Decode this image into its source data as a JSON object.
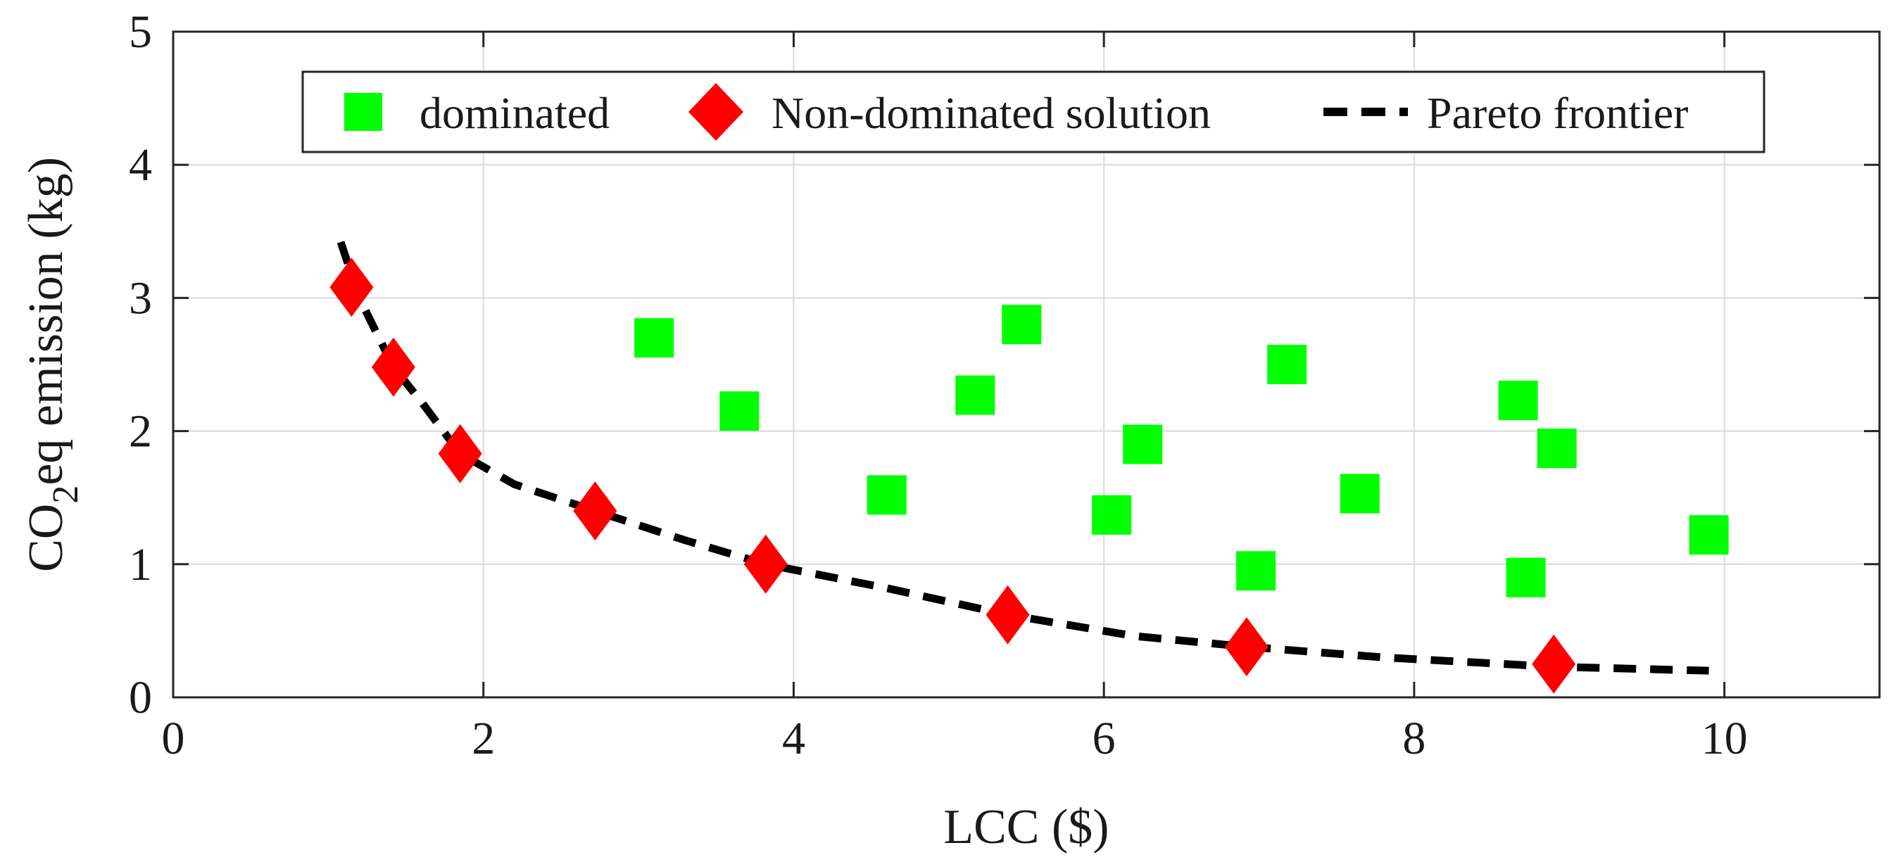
{
  "chart_data": {
    "type": "scatter",
    "xlabel": "LCC ($)",
    "ylabel": {
      "main": "CO",
      "subscript": "2",
      "rest": "eq emission (kg)"
    },
    "xlim": [
      0,
      11
    ],
    "ylim": [
      0,
      5
    ],
    "x_ticks": [
      0,
      2,
      4,
      6,
      8,
      10
    ],
    "y_ticks": [
      0,
      1,
      2,
      3,
      4,
      5
    ],
    "grid": true,
    "legend_position": "top-center",
    "series": [
      {
        "name": "dominated",
        "marker": "square",
        "color": "#00ff00",
        "points": [
          [
            3.1,
            2.7
          ],
          [
            3.65,
            2.15
          ],
          [
            4.6,
            1.52
          ],
          [
            5.17,
            2.27
          ],
          [
            5.47,
            2.8
          ],
          [
            6.05,
            1.37
          ],
          [
            6.25,
            1.9
          ],
          [
            6.98,
            0.95
          ],
          [
            7.18,
            2.5
          ],
          [
            7.65,
            1.53
          ],
          [
            8.67,
            2.23
          ],
          [
            8.72,
            0.9
          ],
          [
            8.92,
            1.87
          ],
          [
            9.9,
            1.22
          ]
        ]
      },
      {
        "name": "Non-dominated solution",
        "marker": "diamond",
        "color": "#ff0000",
        "points": [
          [
            1.15,
            3.08
          ],
          [
            1.42,
            2.48
          ],
          [
            1.85,
            1.83
          ],
          [
            2.72,
            1.4
          ],
          [
            3.82,
            1.0
          ],
          [
            5.38,
            0.62
          ],
          [
            6.92,
            0.38
          ],
          [
            8.9,
            0.25
          ]
        ]
      },
      {
        "name": "Pareto frontier",
        "line_style": "dashed",
        "color": "#000000",
        "points": [
          [
            1.08,
            3.42
          ],
          [
            1.2,
            3.0
          ],
          [
            1.42,
            2.48
          ],
          [
            1.6,
            2.22
          ],
          [
            1.85,
            1.83
          ],
          [
            2.2,
            1.6
          ],
          [
            2.72,
            1.4
          ],
          [
            3.3,
            1.18
          ],
          [
            3.82,
            1.0
          ],
          [
            4.6,
            0.82
          ],
          [
            5.38,
            0.62
          ],
          [
            6.2,
            0.46
          ],
          [
            6.92,
            0.38
          ],
          [
            7.8,
            0.3
          ],
          [
            8.9,
            0.23
          ],
          [
            9.9,
            0.2
          ]
        ]
      }
    ]
  }
}
